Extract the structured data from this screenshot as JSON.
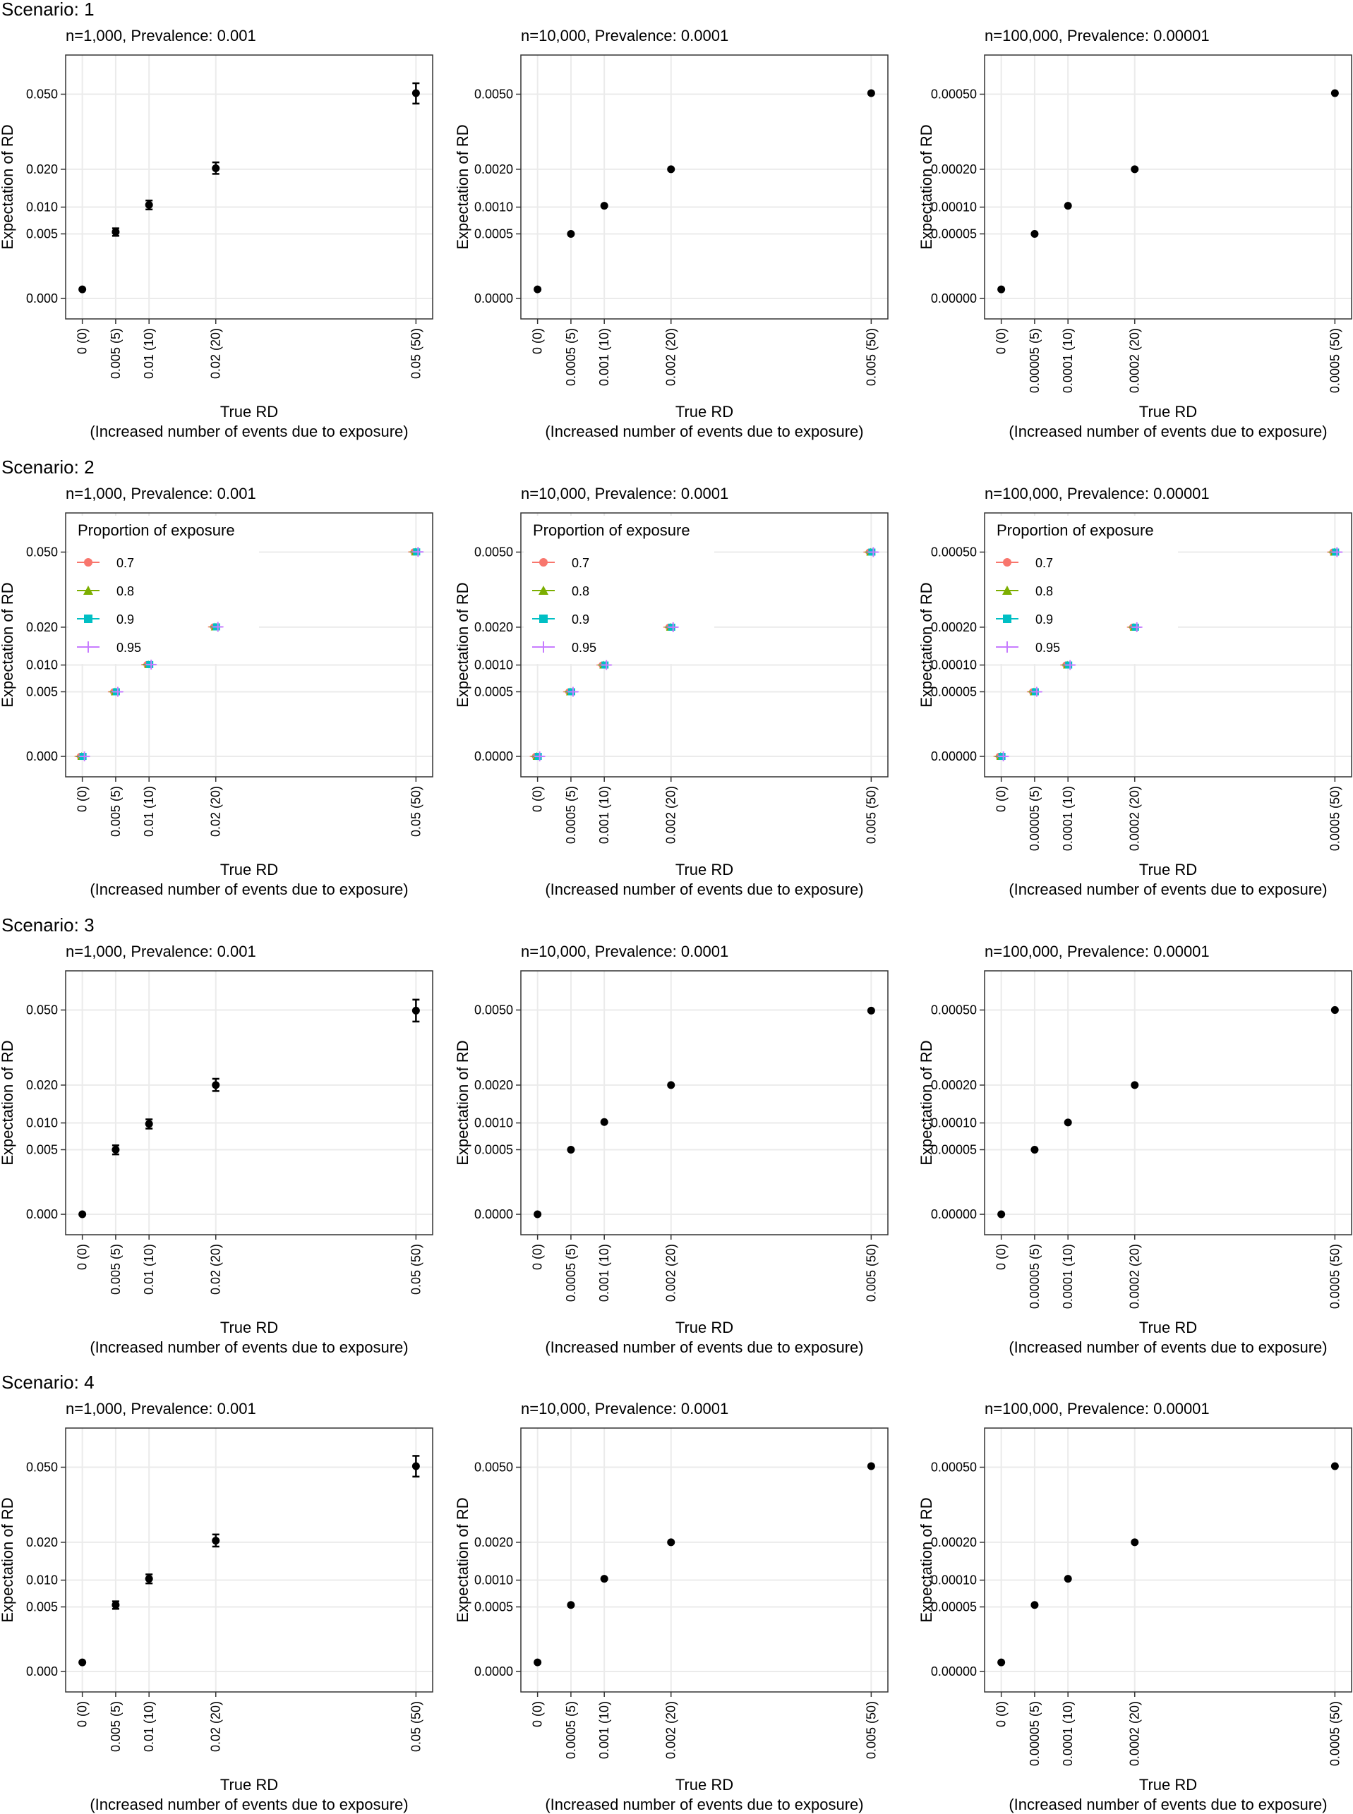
{
  "shared": {
    "ylabel": "Expectation of RD",
    "xlabel_line1": "True RD",
    "xlabel_line2": "(Increased number of events due to exposure)",
    "legend_title": "Proportion of exposure",
    "legend_items": [
      {
        "label": "0.7",
        "color": "#F8766D",
        "shape": "circle"
      },
      {
        "label": "0.8",
        "color": "#7CAE00",
        "shape": "triangle"
      },
      {
        "label": "0.9",
        "color": "#00BFC4",
        "shape": "square"
      },
      {
        "label": "0.95",
        "color": "#C77CFF",
        "shape": "plus"
      }
    ]
  },
  "scenarios": [
    {
      "title": "Scenario: 1",
      "legend": false,
      "error_bars": true
    },
    {
      "title": "Scenario: 2",
      "legend": true,
      "error_bars": false
    },
    {
      "title": "Scenario: 3",
      "legend": false,
      "error_bars": true
    },
    {
      "title": "Scenario: 4",
      "legend": false,
      "error_bars": true
    }
  ],
  "columns": [
    {
      "subtitle": "n=1,000, Prevalence: 0.001",
      "x_tick_labels": [
        "0 (0)",
        "0.005 (5)",
        "0.01 (10)",
        "0.02 (20)",
        "0.05 (50)"
      ],
      "y_tick_labels": [
        "0.000",
        "0.005",
        "0.010",
        "0.020",
        "0.050"
      ],
      "y_ticks": [
        0,
        0.005,
        0.01,
        0.02,
        0.05
      ]
    },
    {
      "subtitle": "n=10,000, Prevalence: 0.0001",
      "x_tick_labels": [
        "0 (0)",
        "0.0005 (5)",
        "0.001 (10)",
        "0.002 (20)",
        "0.005 (50)"
      ],
      "y_tick_labels": [
        "0.0000",
        "0.0005",
        "0.0010",
        "0.0020",
        "0.0050"
      ],
      "y_ticks": [
        0,
        0.0005,
        0.001,
        0.002,
        0.005
      ]
    },
    {
      "subtitle": "n=100,000, Prevalence: 0.00001",
      "x_tick_labels": [
        "0 (0)",
        "0.00005 (5)",
        "0.0001 (10)",
        "0.0002 (20)",
        "0.0005 (50)"
      ],
      "y_tick_labels": [
        "0.00000",
        "0.00005",
        "0.00010",
        "0.00020",
        "0.00050"
      ],
      "y_ticks": [
        0,
        5e-05,
        0.0001,
        0.0002,
        0.0005
      ]
    }
  ],
  "chart_data": {
    "type": "scatter",
    "y_scale": "sqrt",
    "grid": true,
    "legend_placement": "top-left (Scenario 2 panels)",
    "x_events": [
      0,
      5,
      10,
      20,
      50
    ],
    "panels": {
      "s1": [
        {
          "y": [
            0.0001,
            0.0053,
            0.0105,
            0.0203,
            0.0505
          ],
          "lo": [
            0.0001,
            0.0047,
            0.0095,
            0.0186,
            0.0455
          ],
          "hi": [
            0.0001,
            0.0059,
            0.0115,
            0.0222,
            0.0555
          ]
        },
        {
          "y": [
            1e-05,
            0.0005,
            0.00103,
            0.002,
            0.00505
          ]
        },
        {
          "y": [
            1e-06,
            5e-05,
            0.000103,
            0.0002,
            0.000505
          ]
        }
      ],
      "s3": [
        {
          "y": [
            0.0,
            0.005,
            0.0098,
            0.02,
            0.0497
          ],
          "lo": [
            0.0,
            0.0043,
            0.0088,
            0.0182,
            0.0445
          ],
          "hi": [
            0.0,
            0.0057,
            0.0108,
            0.022,
            0.0552
          ]
        },
        {
          "y": [
            0.0,
            0.0005,
            0.00102,
            0.002,
            0.00497
          ]
        },
        {
          "y": [
            0.0,
            5e-05,
            0.000101,
            0.0002,
            0.0005
          ]
        }
      ],
      "s4": [
        {
          "y": [
            0.0001,
            0.0053,
            0.0103,
            0.0205,
            0.0505
          ],
          "lo": [
            0.0001,
            0.0047,
            0.0093,
            0.0187,
            0.0455
          ],
          "hi": [
            0.0001,
            0.0059,
            0.0113,
            0.0225,
            0.0557
          ]
        },
        {
          "y": [
            1e-05,
            0.00053,
            0.00103,
            0.002,
            0.00505
          ]
        },
        {
          "y": [
            1e-06,
            5.3e-05,
            0.000103,
            0.0002,
            0.000505
          ]
        }
      ],
      "s2": [
        [
          {
            "name": "0.7",
            "y": [
              0.0,
              0.005,
              0.0101,
              0.0201,
              0.0501
            ]
          },
          {
            "name": "0.8",
            "y": [
              0.0,
              0.005,
              0.0101,
              0.0201,
              0.0501
            ]
          },
          {
            "name": "0.9",
            "y": [
              0.0,
              0.005,
              0.0101,
              0.0201,
              0.0501
            ]
          },
          {
            "name": "0.95",
            "y": [
              0.0,
              0.005,
              0.0101,
              0.0201,
              0.0501
            ]
          }
        ],
        [
          {
            "name": "0.7",
            "y": [
              0.0,
              0.0005,
              0.001,
              0.002,
              0.005
            ]
          },
          {
            "name": "0.8",
            "y": [
              0.0,
              0.0005,
              0.001,
              0.002,
              0.005
            ]
          },
          {
            "name": "0.9",
            "y": [
              0.0,
              0.0005,
              0.001,
              0.002,
              0.005
            ]
          },
          {
            "name": "0.95",
            "y": [
              0.0,
              0.0005,
              0.001,
              0.002,
              0.005
            ]
          }
        ],
        [
          {
            "name": "0.7",
            "y": [
              0.0,
              5e-05,
              0.0001,
              0.0002,
              0.0005
            ]
          },
          {
            "name": "0.8",
            "y": [
              0.0,
              5e-05,
              0.0001,
              0.0002,
              0.0005
            ]
          },
          {
            "name": "0.9",
            "y": [
              0.0,
              5e-05,
              0.0001,
              0.0002,
              0.0005
            ]
          },
          {
            "name": "0.95",
            "y": [
              0.0,
              5e-05,
              0.0001,
              0.0002,
              0.0005
            ]
          }
        ]
      ]
    }
  }
}
